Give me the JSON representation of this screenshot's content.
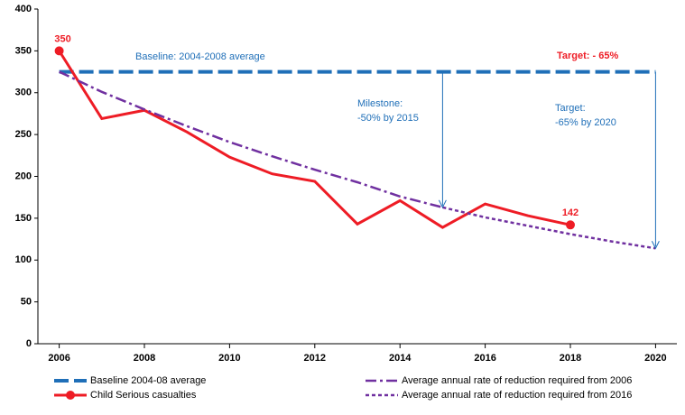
{
  "chart_data": {
    "type": "line",
    "x_axis": "year",
    "xlim": [
      2005.5,
      2020.5
    ],
    "xticks": [
      2006,
      2008,
      2010,
      2012,
      2014,
      2016,
      2018,
      2020
    ],
    "ylim": [
      0,
      400
    ],
    "yticks": [
      0,
      50,
      100,
      150,
      200,
      250,
      300,
      350,
      400
    ],
    "grid": false,
    "series": [
      {
        "name": "Baseline 2004-08 average",
        "color": "#1f6fb8",
        "style": "dashed",
        "x": [
          2006,
          2020
        ],
        "values": [
          325,
          325
        ]
      },
      {
        "name": "Child Serious casualties",
        "color": "#ee1c25",
        "style": "solid",
        "label_points": [
          0,
          12
        ],
        "x": [
          2006,
          2007,
          2008,
          2009,
          2010,
          2011,
          2012,
          2013,
          2014,
          2015,
          2016,
          2017,
          2018
        ],
        "values": [
          350,
          269,
          279,
          253,
          223,
          203,
          194,
          143,
          171,
          139,
          167,
          153,
          142
        ]
      },
      {
        "name": "Average annual rate of reduction required from 2006",
        "color": "#7030a0",
        "style": "dashdot",
        "x": [
          2006,
          2007,
          2008,
          2009,
          2010,
          2011,
          2012,
          2013,
          2014,
          2015
        ],
        "values": [
          325,
          301,
          280,
          260,
          241,
          224,
          208,
          193,
          176,
          163
        ]
      },
      {
        "name": "Average annual rate of reduction required from 2016",
        "color": "#7030a0",
        "style": "dotted",
        "x": [
          2015,
          2016,
          2017,
          2018,
          2019,
          2020
        ],
        "values": [
          163,
          151,
          141,
          131,
          122,
          114
        ]
      }
    ],
    "annotations": [
      {
        "lines": [
          "Baseline: 2004-2008 average"
        ],
        "color": "#1f6fb8"
      },
      {
        "lines": [
          "Target: - 65%"
        ],
        "color": "#ee1c25"
      },
      {
        "lines": [
          "Milestone:",
          "-50% by 2015"
        ],
        "color": "#1f6fb8"
      },
      {
        "lines": [
          "Target:",
          "-65% by 2020"
        ],
        "color": "#1f6fb8"
      }
    ]
  }
}
